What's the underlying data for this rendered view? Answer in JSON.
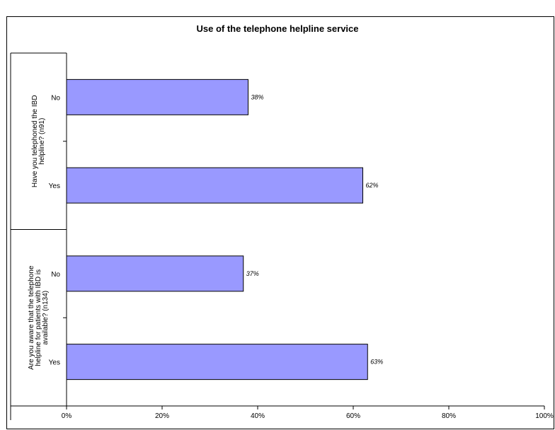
{
  "chart_data": {
    "type": "bar",
    "orientation": "horizontal",
    "title": "Use of the telephone helpline service",
    "xlim": [
      0,
      100
    ],
    "x_ticks": [
      "0%",
      "20%",
      "40%",
      "60%",
      "80%",
      "100%"
    ],
    "groups": [
      {
        "label": "Have you telephoned the IBD helpline? (n91)",
        "bars": [
          {
            "category": "No",
            "value": 38,
            "label": "38%"
          },
          {
            "category": "Yes",
            "value": 62,
            "label": "62%"
          }
        ]
      },
      {
        "label": "Are you aware that the telephone helpline for patients with IBD is available? (n134)",
        "bars": [
          {
            "category": "No",
            "value": 37,
            "label": "37%"
          },
          {
            "category": "Yes",
            "value": 63,
            "label": "63%"
          }
        ]
      }
    ],
    "bar_color": "#9999ff",
    "grid": false,
    "legend": "none"
  }
}
